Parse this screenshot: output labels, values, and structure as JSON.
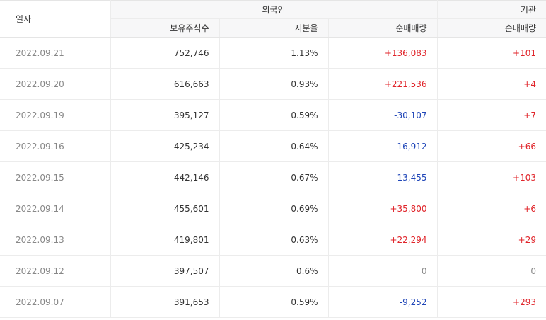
{
  "colors": {
    "up": "#e0242a",
    "down": "#2046b8",
    "neutral": "#888888"
  },
  "header": {
    "date": "일자",
    "foreign": "외국인",
    "institution": "기관",
    "holdings": "보유주식수",
    "ratio": "지분율",
    "foreign_net": "순매매량",
    "inst_net": "순매매량"
  },
  "rows": [
    {
      "date": "2022.09.21",
      "holdings": "752,746",
      "ratio": "1.13%",
      "foreign_net": "+136,083",
      "foreign_dir": "red",
      "inst_net": "+101",
      "inst_dir": "red"
    },
    {
      "date": "2022.09.20",
      "holdings": "616,663",
      "ratio": "0.93%",
      "foreign_net": "+221,536",
      "foreign_dir": "red",
      "inst_net": "+4",
      "inst_dir": "red"
    },
    {
      "date": "2022.09.19",
      "holdings": "395,127",
      "ratio": "0.59%",
      "foreign_net": "-30,107",
      "foreign_dir": "blue",
      "inst_net": "+7",
      "inst_dir": "red"
    },
    {
      "date": "2022.09.16",
      "holdings": "425,234",
      "ratio": "0.64%",
      "foreign_net": "-16,912",
      "foreign_dir": "blue",
      "inst_net": "+66",
      "inst_dir": "red"
    },
    {
      "date": "2022.09.15",
      "holdings": "442,146",
      "ratio": "0.67%",
      "foreign_net": "-13,455",
      "foreign_dir": "blue",
      "inst_net": "+103",
      "inst_dir": "red"
    },
    {
      "date": "2022.09.14",
      "holdings": "455,601",
      "ratio": "0.69%",
      "foreign_net": "+35,800",
      "foreign_dir": "red",
      "inst_net": "+6",
      "inst_dir": "red"
    },
    {
      "date": "2022.09.13",
      "holdings": "419,801",
      "ratio": "0.63%",
      "foreign_net": "+22,294",
      "foreign_dir": "red",
      "inst_net": "+29",
      "inst_dir": "red"
    },
    {
      "date": "2022.09.12",
      "holdings": "397,507",
      "ratio": "0.6%",
      "foreign_net": "0",
      "foreign_dir": "zero",
      "inst_net": "0",
      "inst_dir": "zero"
    },
    {
      "date": "2022.09.07",
      "holdings": "391,653",
      "ratio": "0.59%",
      "foreign_net": "-9,252",
      "foreign_dir": "blue",
      "inst_net": "+293",
      "inst_dir": "red"
    }
  ]
}
